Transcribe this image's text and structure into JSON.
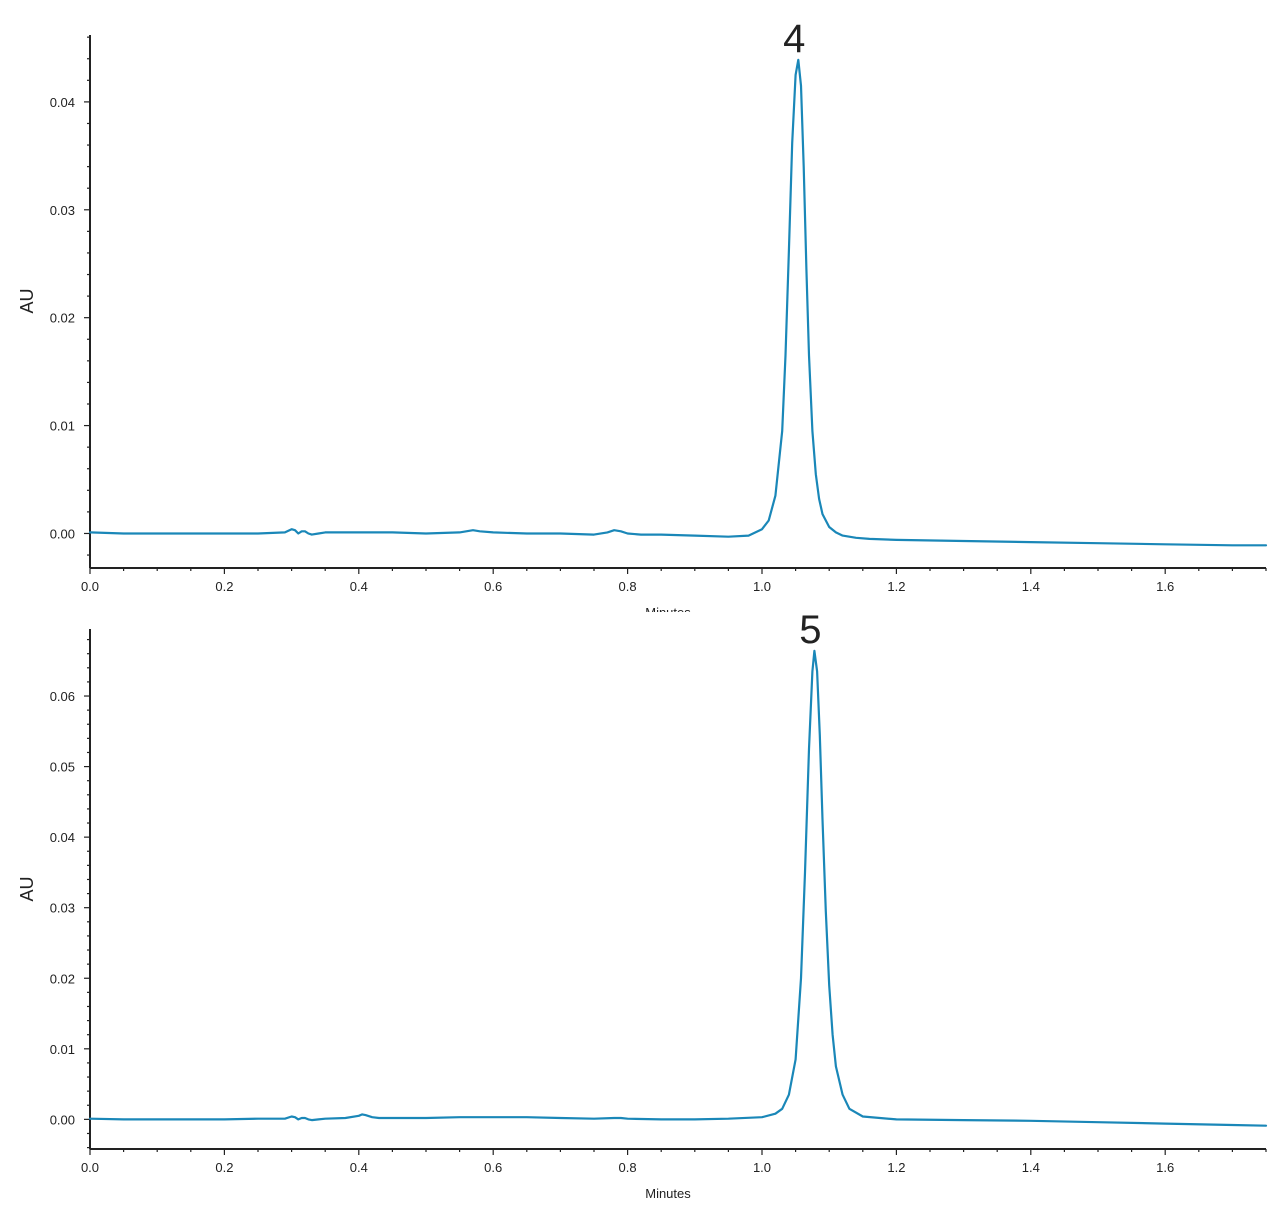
{
  "line_color": "#1a87b8",
  "axis_color": "#222222",
  "chart_data": [
    {
      "type": "line",
      "xlabel": "Minutes",
      "ylabel": "AU",
      "xlim": [
        0.0,
        1.75
      ],
      "ylim": [
        -0.0032,
        0.0462
      ],
      "x_ticks": [
        "0.0",
        "0.2",
        "0.4",
        "0.6",
        "0.8",
        "1.0",
        "1.2",
        "1.4",
        "1.6"
      ],
      "y_ticks": [
        "0.00",
        "0.01",
        "0.02",
        "0.03",
        "0.04"
      ],
      "annotations": [
        {
          "text": "4",
          "x": 1.054,
          "y": 0.0439
        }
      ],
      "series": [
        {
          "x": [
            0.0,
            0.05,
            0.1,
            0.15,
            0.2,
            0.25,
            0.29,
            0.3,
            0.305,
            0.31,
            0.315,
            0.32,
            0.325,
            0.33,
            0.34,
            0.35,
            0.4,
            0.45,
            0.5,
            0.55,
            0.56,
            0.57,
            0.58,
            0.6,
            0.65,
            0.7,
            0.75,
            0.77,
            0.78,
            0.79,
            0.8,
            0.82,
            0.85,
            0.9,
            0.95,
            0.98,
            1.0,
            1.01,
            1.02,
            1.03,
            1.035,
            1.04,
            1.045,
            1.05,
            1.054,
            1.058,
            1.062,
            1.066,
            1.07,
            1.075,
            1.08,
            1.085,
            1.09,
            1.1,
            1.11,
            1.12,
            1.14,
            1.16,
            1.2,
            1.3,
            1.4,
            1.5,
            1.6,
            1.7,
            1.75
          ],
          "y": [
            0.0001,
            0.0,
            0.0,
            0.0,
            0.0,
            0.0,
            0.0001,
            0.0004,
            0.0003,
            0.0,
            0.0002,
            0.0002,
            0.0,
            -0.0001,
            0.0,
            0.0001,
            0.0001,
            0.0001,
            0.0,
            0.0001,
            0.0002,
            0.0003,
            0.0002,
            0.0001,
            0.0,
            0.0,
            -0.0001,
            0.0001,
            0.0003,
            0.0002,
            0.0,
            -0.0001,
            -0.0001,
            -0.0002,
            -0.0003,
            -0.0002,
            0.0004,
            0.0012,
            0.0035,
            0.0095,
            0.0165,
            0.0262,
            0.0362,
            0.0425,
            0.0439,
            0.0415,
            0.034,
            0.0245,
            0.0165,
            0.0095,
            0.0055,
            0.0032,
            0.0018,
            0.0006,
            0.0001,
            -0.0002,
            -0.0004,
            -0.0005,
            -0.0006,
            -0.0007,
            -0.0008,
            -0.0009,
            -0.001,
            -0.0011,
            -0.0011
          ]
        }
      ]
    },
    {
      "type": "line",
      "xlabel": "Minutes",
      "ylabel": "AU",
      "xlim": [
        0.0,
        1.75
      ],
      "ylim": [
        -0.0042,
        0.0695
      ],
      "x_ticks": [
        "0.0",
        "0.2",
        "0.4",
        "0.6",
        "0.8",
        "1.0",
        "1.2",
        "1.4",
        "1.6"
      ],
      "y_ticks": [
        "0.00",
        "0.01",
        "0.02",
        "0.03",
        "0.04",
        "0.05",
        "0.06"
      ],
      "annotations": [
        {
          "text": "5",
          "x": 1.078,
          "y": 0.0664
        }
      ],
      "series": [
        {
          "x": [
            0.0,
            0.05,
            0.1,
            0.15,
            0.2,
            0.25,
            0.29,
            0.3,
            0.305,
            0.31,
            0.315,
            0.32,
            0.325,
            0.33,
            0.34,
            0.35,
            0.38,
            0.4,
            0.405,
            0.41,
            0.42,
            0.43,
            0.45,
            0.5,
            0.55,
            0.6,
            0.65,
            0.7,
            0.75,
            0.78,
            0.79,
            0.8,
            0.85,
            0.9,
            0.95,
            1.0,
            1.02,
            1.03,
            1.04,
            1.05,
            1.058,
            1.064,
            1.07,
            1.075,
            1.078,
            1.082,
            1.086,
            1.09,
            1.095,
            1.1,
            1.105,
            1.11,
            1.12,
            1.13,
            1.15,
            1.2,
            1.3,
            1.4,
            1.5,
            1.6,
            1.7,
            1.75
          ],
          "y": [
            0.0001,
            0.0,
            0.0,
            0.0,
            0.0,
            0.0001,
            0.0001,
            0.0004,
            0.0003,
            0.0,
            0.0002,
            0.0002,
            0.0,
            -0.0001,
            0.0,
            0.0001,
            0.0002,
            0.0005,
            0.0007,
            0.0006,
            0.0003,
            0.0002,
            0.0002,
            0.0002,
            0.0003,
            0.0003,
            0.0003,
            0.0002,
            0.0001,
            0.0002,
            0.0002,
            0.0001,
            0.0,
            0.0,
            0.0001,
            0.0003,
            0.0008,
            0.0015,
            0.0035,
            0.0085,
            0.02,
            0.035,
            0.0525,
            0.0635,
            0.0664,
            0.0635,
            0.0545,
            0.0425,
            0.0295,
            0.019,
            0.012,
            0.0075,
            0.0035,
            0.0015,
            0.0004,
            0.0,
            -0.0001,
            -0.0002,
            -0.0004,
            -0.0006,
            -0.0008,
            -0.0009
          ]
        }
      ]
    }
  ]
}
